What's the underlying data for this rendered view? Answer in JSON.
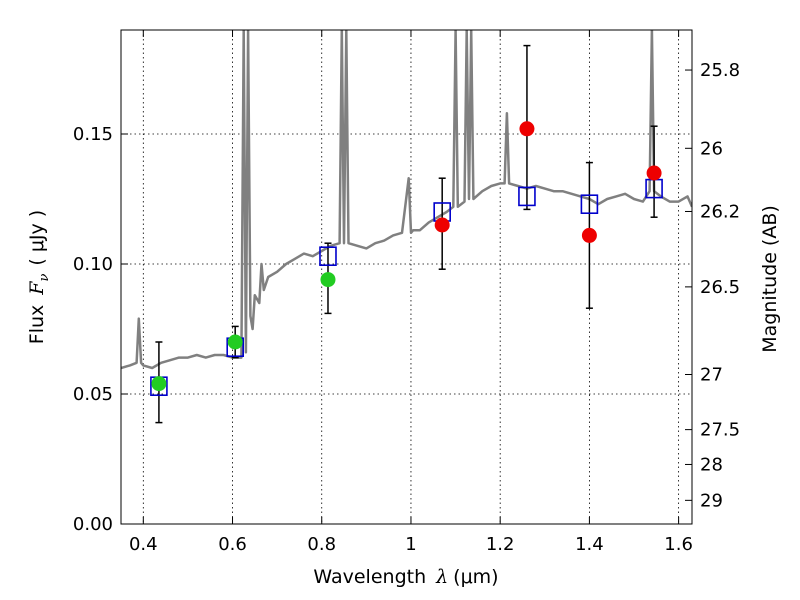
{
  "chart_data": {
    "type": "scatter",
    "xlabel": "Wavelength",
    "xlabel_symbol": "λ",
    "xlabel_unit": "(μm)",
    "ylabel": "Flux",
    "ylabel_symbol": "F",
    "ylabel_subscript": "ν",
    "ylabel_unit": "( μJy )",
    "ylabel_right": "Magnitude (AB)",
    "xlim": [
      0.35,
      1.63
    ],
    "ylim": [
      0.0,
      0.19
    ],
    "grid": true,
    "x_ticks": [
      0.4,
      0.6,
      0.8,
      1.0,
      1.2,
      1.4,
      1.6
    ],
    "x_tick_labels": [
      "0.4",
      "0.6",
      "0.8",
      "1",
      "1.2",
      "1.4",
      "1.6"
    ],
    "y_ticks": [
      0.0,
      0.05,
      0.1,
      0.15
    ],
    "y_tick_labels": [
      "0.00",
      "0.05",
      "0.10",
      "0.15"
    ],
    "right_ticks": [
      {
        "label": "25.8",
        "flux": 0.1746
      },
      {
        "label": "26",
        "flux": 0.1445
      },
      {
        "label": "26.2",
        "flux": 0.1202
      },
      {
        "label": "26.5",
        "flux": 0.0912
      },
      {
        "label": "27",
        "flux": 0.0575
      },
      {
        "label": "27.5",
        "flux": 0.0363
      },
      {
        "label": "28",
        "flux": 0.0229
      },
      {
        "label": "29",
        "flux": 0.0091
      }
    ],
    "series": [
      {
        "marker": "square",
        "color": "#0000cc",
        "points": [
          {
            "x": 0.435,
            "y": 0.053
          },
          {
            "x": 0.606,
            "y": 0.068
          },
          {
            "x": 0.814,
            "y": 0.103
          },
          {
            "x": 1.07,
            "y": 0.12
          },
          {
            "x": 1.26,
            "y": 0.126
          },
          {
            "x": 1.4,
            "y": 0.123
          },
          {
            "x": 1.545,
            "y": 0.129
          }
        ]
      },
      {
        "marker": "circle",
        "color": "#22cc22",
        "points": [
          {
            "x": 0.435,
            "y": 0.054,
            "err_low": 0.039,
            "err_high": 0.07
          },
          {
            "x": 0.606,
            "y": 0.07,
            "err_low": 0.064,
            "err_high": 0.076
          },
          {
            "x": 0.814,
            "y": 0.094,
            "err_low": 0.081,
            "err_high": 0.108
          }
        ]
      },
      {
        "marker": "circle",
        "color": "#ee0000",
        "points": [
          {
            "x": 1.07,
            "y": 0.115,
            "err_low": 0.098,
            "err_high": 0.133
          },
          {
            "x": 1.26,
            "y": 0.152,
            "err_low": 0.121,
            "err_high": 0.184
          },
          {
            "x": 1.4,
            "y": 0.111,
            "err_low": 0.083,
            "err_high": 0.139
          },
          {
            "x": 1.545,
            "y": 0.135,
            "err_low": 0.118,
            "err_high": 0.153
          }
        ]
      }
    ],
    "spectrum": {
      "color": "#808080",
      "x": [
        0.35,
        0.37,
        0.385,
        0.39,
        0.395,
        0.4,
        0.42,
        0.44,
        0.46,
        0.48,
        0.5,
        0.52,
        0.54,
        0.56,
        0.58,
        0.6,
        0.62,
        0.625,
        0.63,
        0.635,
        0.64,
        0.645,
        0.65,
        0.66,
        0.665,
        0.67,
        0.68,
        0.7,
        0.72,
        0.74,
        0.76,
        0.78,
        0.8,
        0.82,
        0.84,
        0.845,
        0.85,
        0.855,
        0.86,
        0.88,
        0.9,
        0.92,
        0.94,
        0.96,
        0.98,
        0.995,
        1.0,
        1.005,
        1.02,
        1.04,
        1.06,
        1.08,
        1.095,
        1.1,
        1.105,
        1.12,
        1.125,
        1.13,
        1.135,
        1.14,
        1.16,
        1.18,
        1.2,
        1.21,
        1.215,
        1.22,
        1.24,
        1.26,
        1.28,
        1.3,
        1.32,
        1.34,
        1.36,
        1.38,
        1.4,
        1.42,
        1.44,
        1.46,
        1.48,
        1.5,
        1.52,
        1.535,
        1.54,
        1.545,
        1.56,
        1.58,
        1.6,
        1.62,
        1.63
      ],
      "y": [
        0.06,
        0.061,
        0.062,
        0.079,
        0.062,
        0.061,
        0.06,
        0.062,
        0.063,
        0.064,
        0.064,
        0.065,
        0.064,
        0.065,
        0.065,
        0.064,
        0.064,
        0.19,
        0.066,
        0.19,
        0.08,
        0.075,
        0.088,
        0.085,
        0.1,
        0.09,
        0.095,
        0.097,
        0.1,
        0.102,
        0.104,
        0.103,
        0.105,
        0.107,
        0.108,
        0.19,
        0.108,
        0.19,
        0.108,
        0.107,
        0.106,
        0.108,
        0.109,
        0.111,
        0.112,
        0.133,
        0.112,
        0.113,
        0.113,
        0.116,
        0.118,
        0.12,
        0.122,
        0.19,
        0.122,
        0.124,
        0.19,
        0.125,
        0.19,
        0.125,
        0.128,
        0.13,
        0.131,
        0.131,
        0.158,
        0.131,
        0.13,
        0.129,
        0.13,
        0.129,
        0.128,
        0.128,
        0.127,
        0.126,
        0.125,
        0.123,
        0.125,
        0.126,
        0.127,
        0.125,
        0.124,
        0.128,
        0.19,
        0.128,
        0.126,
        0.124,
        0.124,
        0.126,
        0.122
      ]
    }
  }
}
